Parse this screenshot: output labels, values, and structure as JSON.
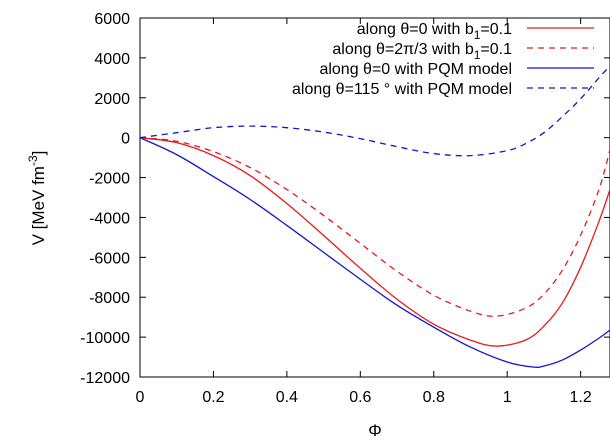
{
  "chart_data": {
    "type": "line",
    "xlabel": "Φ",
    "ylabel": "V [MeV fm",
    "ylabel_sup": "-3",
    "ylabel_close": "]",
    "xlim": [
      0,
      1.28
    ],
    "ylim": [
      -12000,
      6000
    ],
    "xticks": [
      0,
      0.2,
      0.4,
      0.6,
      0.8,
      1,
      1.2
    ],
    "xtick_labels": [
      "0",
      "0.2",
      "0.4",
      "0.6",
      "0.8",
      "1",
      "1.2"
    ],
    "yticks": [
      6000,
      4000,
      2000,
      0,
      -2000,
      -4000,
      -6000,
      -8000,
      -10000,
      -12000
    ],
    "ytick_labels": [
      "6000",
      "4000",
      "2000",
      "0",
      "-2000",
      "-4000",
      "-6000",
      "-8000",
      "-10000",
      "-12000"
    ],
    "grid": false,
    "legend_position": "top-right",
    "series": [
      {
        "name": "along θ=0 with b1=0.1",
        "legend_parts": [
          "along θ=0 with b",
          "1",
          "=0.1"
        ],
        "color": "#e8191a",
        "dash": "solid",
        "x": [
          0,
          0.1,
          0.2,
          0.3,
          0.4,
          0.5,
          0.6,
          0.7,
          0.8,
          0.9,
          0.97,
          1.05,
          1.1,
          1.15,
          1.2,
          1.25,
          1.28
        ],
        "y": [
          0,
          -250,
          -900,
          -1900,
          -3300,
          -4900,
          -6550,
          -8100,
          -9350,
          -10150,
          -10450,
          -10150,
          -9450,
          -8300,
          -6500,
          -4200,
          -2600
        ]
      },
      {
        "name": "along θ=2π/3 with b1=0.1",
        "legend_parts": [
          "along θ=2π/3 with b",
          "1",
          "=0.1"
        ],
        "color": "#e8191a",
        "dash": "dashed",
        "x": [
          0,
          0.1,
          0.2,
          0.3,
          0.4,
          0.5,
          0.6,
          0.7,
          0.8,
          0.9,
          0.97,
          1.05,
          1.1,
          1.15,
          1.2,
          1.25,
          1.28
        ],
        "y": [
          0,
          -180,
          -700,
          -1500,
          -2600,
          -3900,
          -5300,
          -6700,
          -7900,
          -8700,
          -8950,
          -8550,
          -7850,
          -6650,
          -4900,
          -2600,
          -600
        ]
      },
      {
        "name": "along θ=0 with PQM model",
        "legend_parts": [
          "along θ=0 with PQM model",
          "",
          ""
        ],
        "color": "#1515c8",
        "dash": "solid",
        "x": [
          0,
          0.1,
          0.2,
          0.3,
          0.4,
          0.5,
          0.6,
          0.7,
          0.8,
          0.9,
          1.0,
          1.07,
          1.1,
          1.15,
          1.2,
          1.25,
          1.28
        ],
        "y": [
          0,
          -850,
          -1950,
          -3100,
          -4400,
          -5750,
          -7100,
          -8400,
          -9500,
          -10500,
          -11250,
          -11500,
          -11450,
          -11150,
          -10650,
          -10050,
          -9650
        ]
      },
      {
        "name": "along θ=115 ° with PQM model",
        "legend_parts": [
          "along θ=115 ° with PQM model",
          "",
          ""
        ],
        "color": "#1515c8",
        "dash": "dashed",
        "x": [
          0,
          0.1,
          0.2,
          0.3,
          0.4,
          0.5,
          0.6,
          0.7,
          0.8,
          0.9,
          1.0,
          1.05,
          1.1,
          1.15,
          1.2,
          1.25,
          1.28
        ],
        "y": [
          0,
          250,
          500,
          580,
          500,
          280,
          -50,
          -450,
          -800,
          -900,
          -650,
          -300,
          250,
          1050,
          1950,
          3000,
          3600
        ]
      }
    ]
  }
}
